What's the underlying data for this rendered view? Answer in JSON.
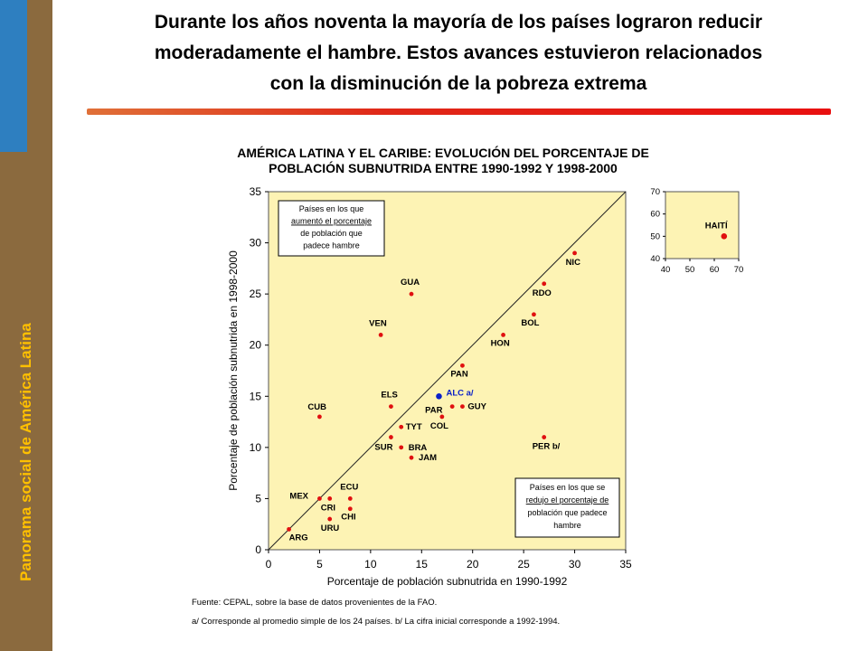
{
  "sidebar": {
    "title": "Panorama social de América Latina",
    "accent_color": "#2e7fc0",
    "bg_color": "#8b6a3e",
    "text_color": "#ffc000"
  },
  "headline": {
    "line1": "Durante los años noventa la mayoría de los países lograron reducir",
    "line2": "moderadamente el hambre. Estos avances estuvieron relacionados",
    "line3": "con la disminución de la pobreza extrema"
  },
  "notes": {
    "source": "Fuente: CEPAL, sobre la base de datos provenientes de la FAO.",
    "footnote": "a/ Corresponde al promedio simple de los 24 países. b/ La cifra inicial corresponde a 1992-1994."
  },
  "chart_data": [
    {
      "type": "scatter",
      "title_line1": "AMÉRICA LATINA Y EL CARIBE: EVOLUCIÓN DEL PORCENTAJE DE",
      "title_line2": "POBLACIÓN SUBNUTRIDA ENTRE 1990-1992 Y 1998-2000",
      "xlabel": "Porcentaje de población subnutrida en 1990-1992",
      "ylabel": "Porcentaje de población subnutrida en 1998-2000",
      "xlim": [
        0,
        35
      ],
      "ylim": [
        0,
        35
      ],
      "xticks": [
        0,
        5,
        10,
        15,
        20,
        25,
        30,
        35
      ],
      "yticks": [
        0,
        5,
        10,
        15,
        20,
        25,
        30,
        35
      ],
      "reference_line": "diagonal y = x",
      "grid": false,
      "background_color": "#fdf3b4",
      "point_color": "#e01010",
      "highlight_color": "#0a20c8",
      "annotation_upper": [
        "Países en los que",
        "aumentó el porcentaje",
        "de población que",
        "padece hambre"
      ],
      "annotation_lower": [
        "Países en los que se",
        "redujo el porcentaje de",
        "población que padece",
        "hambre"
      ],
      "points": [
        {
          "label": "ARG",
          "x": 2,
          "y": 2
        },
        {
          "label": "MEX",
          "x": 5,
          "y": 5
        },
        {
          "label": "CRI",
          "x": 6,
          "y": 5
        },
        {
          "label": "URU",
          "x": 6,
          "y": 3
        },
        {
          "label": "ECU",
          "x": 8,
          "y": 5
        },
        {
          "label": "CHI",
          "x": 8,
          "y": 4
        },
        {
          "label": "CUB",
          "x": 5,
          "y": 13
        },
        {
          "label": "ELS",
          "x": 12,
          "y": 14
        },
        {
          "label": "SUR",
          "x": 12,
          "y": 11
        },
        {
          "label": "TYT",
          "x": 13,
          "y": 12
        },
        {
          "label": "BRA",
          "x": 13,
          "y": 10
        },
        {
          "label": "JAM",
          "x": 14,
          "y": 9
        },
        {
          "label": "COL",
          "x": 17,
          "y": 13
        },
        {
          "label": "PAR",
          "x": 18,
          "y": 14
        },
        {
          "label": "GUY",
          "x": 19,
          "y": 14
        },
        {
          "label": "ALC a/",
          "x": 16.7,
          "y": 15,
          "highlight": true
        },
        {
          "label": "VEN",
          "x": 11,
          "y": 21
        },
        {
          "label": "GUA",
          "x": 14,
          "y": 25
        },
        {
          "label": "PAN",
          "x": 19,
          "y": 18
        },
        {
          "label": "HON",
          "x": 23,
          "y": 21
        },
        {
          "label": "BOL",
          "x": 26,
          "y": 23
        },
        {
          "label": "RDO",
          "x": 27,
          "y": 26
        },
        {
          "label": "NIC",
          "x": 30,
          "y": 29
        },
        {
          "label": "PER b/",
          "x": 27,
          "y": 11
        }
      ]
    },
    {
      "type": "scatter",
      "xlim": [
        40,
        70
      ],
      "ylim": [
        40,
        70
      ],
      "xticks": [
        40,
        50,
        60,
        70
      ],
      "yticks": [
        40,
        50,
        60,
        70
      ],
      "points": [
        {
          "label": "HAITÍ",
          "x": 64,
          "y": 50
        }
      ]
    }
  ]
}
